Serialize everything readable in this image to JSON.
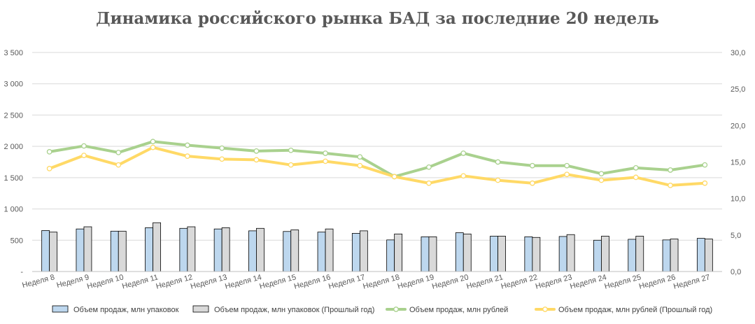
{
  "chart_data": {
    "type": "bar",
    "title": "Динамика российского рынка БАД за последние 20 недель",
    "categories": [
      "Неделя 8",
      "Неделя 9",
      "Неделя 10",
      "Неделя 11",
      "Неделя 12",
      "Неделя 13",
      "Неделя 14",
      "Неделя 15",
      "Неделя 16",
      "Неделя 17",
      "Неделя 18",
      "Неделя 19",
      "Неделя 20",
      "Неделя 21",
      "Неделя 22",
      "Неделя 23",
      "Неделя 24",
      "Неделя 25",
      "Неделя 26",
      "Неделя 27"
    ],
    "y_left": {
      "ylim": [
        0,
        3500
      ],
      "ticks": [
        "-",
        "500",
        "1 000",
        "1 500",
        "2 000",
        "2 500",
        "3 000",
        "3 500"
      ]
    },
    "y_right": {
      "ylim": [
        0,
        30
      ],
      "ticks": [
        "0,0",
        "5,0",
        "10,0",
        "15,0",
        "20,0",
        "25,0",
        "30,0"
      ]
    },
    "grid": true,
    "legend_position": "bottom",
    "series": [
      {
        "name": "Объем продаж, млн упаковок",
        "type": "bar",
        "axis": "left",
        "color": "#bdd7ee",
        "values": [
          655,
          680,
          645,
          700,
          690,
          680,
          650,
          640,
          630,
          610,
          505,
          555,
          620,
          565,
          555,
          560,
          500,
          515,
          505,
          530
        ]
      },
      {
        "name": "Объем продаж, млн упаковок (Прошлый год)",
        "type": "bar",
        "axis": "left",
        "color": "#d9d9d9",
        "values": [
          630,
          715,
          645,
          780,
          715,
          700,
          690,
          665,
          680,
          650,
          600,
          555,
          600,
          565,
          545,
          590,
          565,
          565,
          520,
          520
        ]
      },
      {
        "name": "Объем продаж, млн рублей",
        "type": "line",
        "axis": "right",
        "color": "#a9d18e",
        "values": [
          16.4,
          17.2,
          16.3,
          17.8,
          17.3,
          16.9,
          16.5,
          16.6,
          16.2,
          15.7,
          13.0,
          14.3,
          16.2,
          15.0,
          14.5,
          14.5,
          13.4,
          14.2,
          13.9,
          14.6
        ]
      },
      {
        "name": "Объем продаж, млн рублей (Прошлый год)",
        "type": "line",
        "axis": "right",
        "color": "#ffd966",
        "values": [
          14.1,
          15.9,
          14.6,
          17.0,
          15.8,
          15.4,
          15.3,
          14.6,
          15.1,
          14.5,
          13.0,
          12.1,
          13.1,
          12.5,
          12.1,
          13.3,
          12.5,
          12.9,
          11.8,
          12.1
        ]
      }
    ]
  }
}
